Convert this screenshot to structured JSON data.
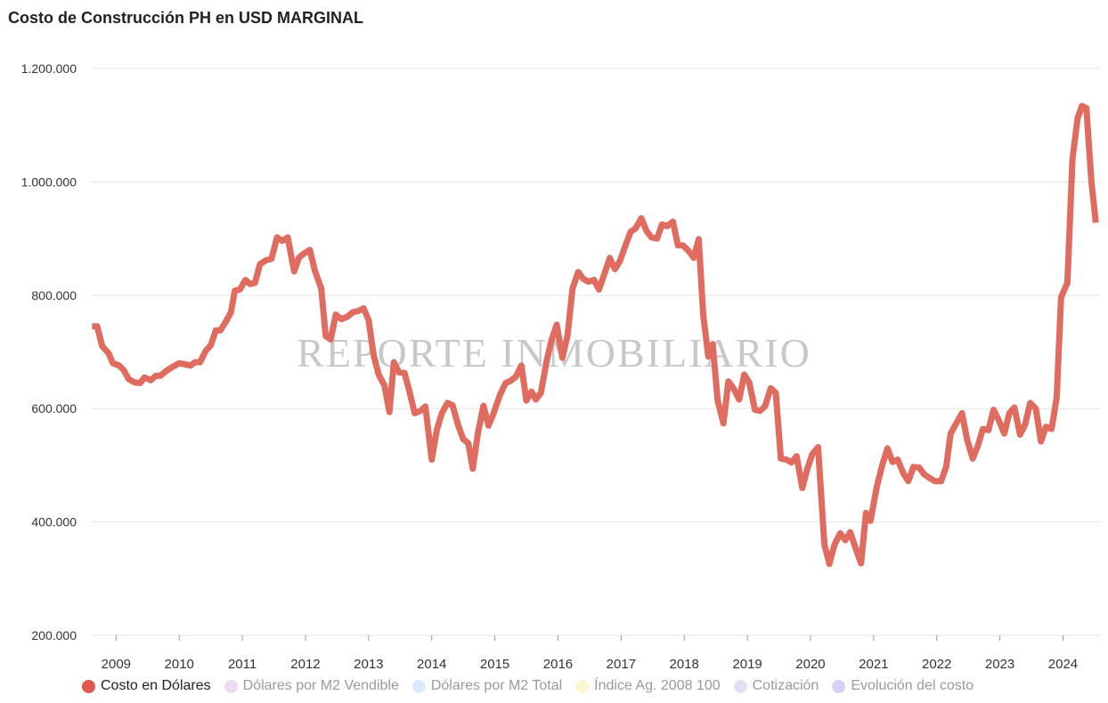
{
  "title": "Costo de Construcción PH en USD MARGINAL",
  "watermark": "REPORTE INMOBILIARIO",
  "colors": {
    "series": "#e06b5f",
    "grid": "#e6e6e6"
  },
  "legend": [
    {
      "label": "Costo en Dólares",
      "color": "#e0584c",
      "active": true
    },
    {
      "label": "Dólares por M2 Vendible",
      "color": "#ecdcf2",
      "active": false
    },
    {
      "label": "Dólares por M2 Total",
      "color": "#dbeafc",
      "active": false
    },
    {
      "label": "Índice Ag. 2008 100",
      "color": "#fdf7cf",
      "active": false
    },
    {
      "label": "Cotización",
      "color": "#e5dff4",
      "active": false
    },
    {
      "label": "Evolución del costo",
      "color": "#d3d1f6",
      "active": false
    }
  ],
  "chart_data": {
    "type": "line",
    "title": "Costo de Construcción PH en USD MARGINAL",
    "xlabel": "",
    "ylabel": "",
    "ylim": [
      200000,
      1200000
    ],
    "yticks": [
      {
        "value": 200000,
        "label": "200.000"
      },
      {
        "value": 400000,
        "label": "400.000"
      },
      {
        "value": 600000,
        "label": "600.000"
      },
      {
        "value": 800000,
        "label": "800.000"
      },
      {
        "value": 1000000,
        "label": "1.000.000"
      },
      {
        "value": 1200000,
        "label": "1.200.000"
      }
    ],
    "xlim": [
      2008.6,
      2024.6
    ],
    "xticks": [
      "2009",
      "2010",
      "2011",
      "2012",
      "2013",
      "2014",
      "2015",
      "2016",
      "2017",
      "2018",
      "2019",
      "2020",
      "2021",
      "2022",
      "2023",
      "2024"
    ],
    "grid": true,
    "legend_position": "bottom",
    "series": [
      {
        "name": "Costo en Dólares",
        "color": "#e06b5f",
        "points": [
          [
            2008.62,
            745000
          ],
          [
            2008.7,
            745000
          ],
          [
            2008.78,
            710000
          ],
          [
            2008.88,
            698000
          ],
          [
            2008.95,
            680000
          ],
          [
            2009.05,
            676000
          ],
          [
            2009.12,
            668000
          ],
          [
            2009.2,
            652000
          ],
          [
            2009.3,
            646000
          ],
          [
            2009.38,
            645000
          ],
          [
            2009.45,
            655000
          ],
          [
            2009.55,
            650000
          ],
          [
            2009.63,
            658000
          ],
          [
            2009.7,
            658000
          ],
          [
            2009.8,
            667000
          ],
          [
            2009.9,
            674000
          ],
          [
            2010.0,
            680000
          ],
          [
            2010.1,
            678000
          ],
          [
            2010.18,
            676000
          ],
          [
            2010.25,
            682000
          ],
          [
            2010.33,
            682000
          ],
          [
            2010.42,
            702000
          ],
          [
            2010.5,
            712000
          ],
          [
            2010.58,
            738000
          ],
          [
            2010.65,
            738000
          ],
          [
            2010.73,
            752000
          ],
          [
            2010.82,
            770000
          ],
          [
            2010.88,
            808000
          ],
          [
            2010.96,
            810000
          ],
          [
            2011.05,
            827000
          ],
          [
            2011.12,
            820000
          ],
          [
            2011.2,
            822000
          ],
          [
            2011.28,
            855000
          ],
          [
            2011.38,
            862000
          ],
          [
            2011.46,
            864000
          ],
          [
            2011.55,
            902000
          ],
          [
            2011.63,
            896000
          ],
          [
            2011.72,
            902000
          ],
          [
            2011.82,
            842000
          ],
          [
            2011.9,
            867000
          ],
          [
            2011.98,
            874000
          ],
          [
            2012.07,
            880000
          ],
          [
            2012.15,
            843000
          ],
          [
            2012.25,
            812000
          ],
          [
            2012.32,
            728000
          ],
          [
            2012.4,
            722000
          ],
          [
            2012.48,
            766000
          ],
          [
            2012.57,
            758000
          ],
          [
            2012.66,
            762000
          ],
          [
            2012.75,
            770000
          ],
          [
            2012.83,
            772000
          ],
          [
            2012.92,
            777000
          ],
          [
            2013.0,
            756000
          ],
          [
            2013.08,
            694000
          ],
          [
            2013.16,
            660000
          ],
          [
            2013.25,
            641000
          ],
          [
            2013.33,
            594000
          ],
          [
            2013.4,
            682000
          ],
          [
            2013.48,
            664000
          ],
          [
            2013.57,
            663000
          ],
          [
            2013.65,
            629000
          ],
          [
            2013.73,
            592000
          ],
          [
            2013.82,
            596000
          ],
          [
            2013.9,
            604000
          ],
          [
            2014.0,
            510000
          ],
          [
            2014.08,
            562000
          ],
          [
            2014.16,
            592000
          ],
          [
            2014.25,
            610000
          ],
          [
            2014.33,
            606000
          ],
          [
            2014.42,
            570000
          ],
          [
            2014.5,
            546000
          ],
          [
            2014.58,
            539000
          ],
          [
            2014.65,
            494000
          ],
          [
            2014.73,
            556000
          ],
          [
            2014.82,
            605000
          ],
          [
            2014.9,
            570000
          ],
          [
            2014.98,
            592000
          ],
          [
            2015.08,
            624000
          ],
          [
            2015.17,
            645000
          ],
          [
            2015.25,
            649000
          ],
          [
            2015.33,
            656000
          ],
          [
            2015.42,
            676000
          ],
          [
            2015.5,
            614000
          ],
          [
            2015.58,
            630000
          ],
          [
            2015.65,
            616000
          ],
          [
            2015.73,
            628000
          ],
          [
            2015.82,
            684000
          ],
          [
            2015.9,
            722000
          ],
          [
            2015.98,
            748000
          ],
          [
            2016.07,
            690000
          ],
          [
            2016.15,
            728000
          ],
          [
            2016.23,
            812000
          ],
          [
            2016.32,
            841000
          ],
          [
            2016.4,
            829000
          ],
          [
            2016.48,
            824000
          ],
          [
            2016.57,
            827000
          ],
          [
            2016.65,
            810000
          ],
          [
            2016.73,
            836000
          ],
          [
            2016.82,
            866000
          ],
          [
            2016.9,
            846000
          ],
          [
            2016.98,
            860000
          ],
          [
            2017.07,
            888000
          ],
          [
            2017.15,
            912000
          ],
          [
            2017.23,
            918000
          ],
          [
            2017.32,
            936000
          ],
          [
            2017.4,
            914000
          ],
          [
            2017.48,
            902000
          ],
          [
            2017.57,
            900000
          ],
          [
            2017.65,
            925000
          ],
          [
            2017.73,
            922000
          ],
          [
            2017.82,
            930000
          ],
          [
            2017.9,
            888000
          ],
          [
            2017.98,
            888000
          ],
          [
            2018.07,
            878000
          ],
          [
            2018.15,
            866000
          ],
          [
            2018.23,
            899000
          ],
          [
            2018.3,
            766000
          ],
          [
            2018.38,
            692000
          ],
          [
            2018.45,
            714000
          ],
          [
            2018.53,
            614000
          ],
          [
            2018.62,
            574000
          ],
          [
            2018.7,
            648000
          ],
          [
            2018.78,
            636000
          ],
          [
            2018.87,
            616000
          ],
          [
            2018.95,
            660000
          ],
          [
            2019.03,
            646000
          ],
          [
            2019.12,
            598000
          ],
          [
            2019.2,
            596000
          ],
          [
            2019.28,
            604000
          ],
          [
            2019.37,
            636000
          ],
          [
            2019.45,
            628000
          ],
          [
            2019.53,
            512000
          ],
          [
            2019.62,
            510000
          ],
          [
            2019.7,
            505000
          ],
          [
            2019.78,
            516000
          ],
          [
            2019.87,
            460000
          ],
          [
            2019.95,
            494000
          ],
          [
            2020.03,
            520000
          ],
          [
            2020.12,
            532000
          ],
          [
            2020.22,
            360000
          ],
          [
            2020.3,
            326000
          ],
          [
            2020.38,
            360000
          ],
          [
            2020.47,
            380000
          ],
          [
            2020.55,
            368000
          ],
          [
            2020.63,
            382000
          ],
          [
            2020.72,
            352000
          ],
          [
            2020.8,
            327000
          ],
          [
            2020.88,
            416000
          ],
          [
            2020.95,
            402000
          ],
          [
            2021.05,
            462000
          ],
          [
            2021.13,
            498000
          ],
          [
            2021.22,
            530000
          ],
          [
            2021.3,
            506000
          ],
          [
            2021.38,
            510000
          ],
          [
            2021.47,
            486000
          ],
          [
            2021.55,
            472000
          ],
          [
            2021.63,
            497000
          ],
          [
            2021.72,
            496000
          ],
          [
            2021.8,
            484000
          ],
          [
            2021.88,
            478000
          ],
          [
            2021.97,
            472000
          ],
          [
            2022.07,
            472000
          ],
          [
            2022.15,
            498000
          ],
          [
            2022.22,
            556000
          ],
          [
            2022.32,
            576000
          ],
          [
            2022.4,
            592000
          ],
          [
            2022.48,
            546000
          ],
          [
            2022.57,
            512000
          ],
          [
            2022.65,
            534000
          ],
          [
            2022.73,
            564000
          ],
          [
            2022.82,
            562000
          ],
          [
            2022.9,
            598000
          ],
          [
            2022.98,
            580000
          ],
          [
            2023.07,
            556000
          ],
          [
            2023.15,
            592000
          ],
          [
            2023.23,
            602000
          ],
          [
            2023.32,
            554000
          ],
          [
            2023.4,
            572000
          ],
          [
            2023.48,
            610000
          ],
          [
            2023.57,
            600000
          ],
          [
            2023.65,
            542000
          ],
          [
            2023.73,
            568000
          ],
          [
            2023.82,
            564000
          ],
          [
            2023.9,
            620000
          ],
          [
            2023.97,
            796000
          ],
          [
            2024.07,
            822000
          ],
          [
            2024.15,
            1040000
          ],
          [
            2024.23,
            1112000
          ],
          [
            2024.3,
            1134000
          ],
          [
            2024.37,
            1130000
          ],
          [
            2024.45,
            1000000
          ],
          [
            2024.52,
            928000
          ]
        ]
      }
    ]
  }
}
